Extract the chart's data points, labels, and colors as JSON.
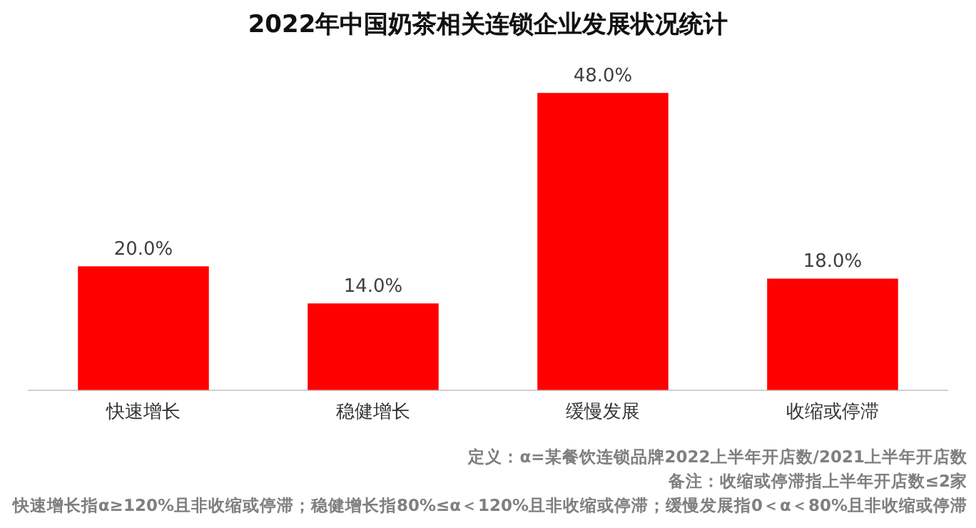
{
  "chart_data": {
    "type": "bar",
    "title": "2022年中国奶茶相关连锁企业发展状况统计",
    "categories": [
      "快速增长",
      "稳健增长",
      "缓慢发展",
      "收缩或停滞"
    ],
    "values": [
      20.0,
      14.0,
      48.0,
      18.0
    ],
    "value_labels": [
      "20.0%",
      "14.0%",
      "48.0%",
      "18.0%"
    ],
    "color": "#ff0000",
    "grid": false,
    "legend": false,
    "tick_labels": "x",
    "annotations": [
      "定义：α=某餐饮连锁品牌2022上半年开店数/2021上半年开店数",
      "备注：收缩或停滞指上半年开店数≤2家",
      "快速增长指α≥120%且非收缩或停滞；稳健增长指80%≤α＜120%且非收缩或停滞；缓慢发展指0＜α＜80%且非收缩或停滞"
    ]
  }
}
